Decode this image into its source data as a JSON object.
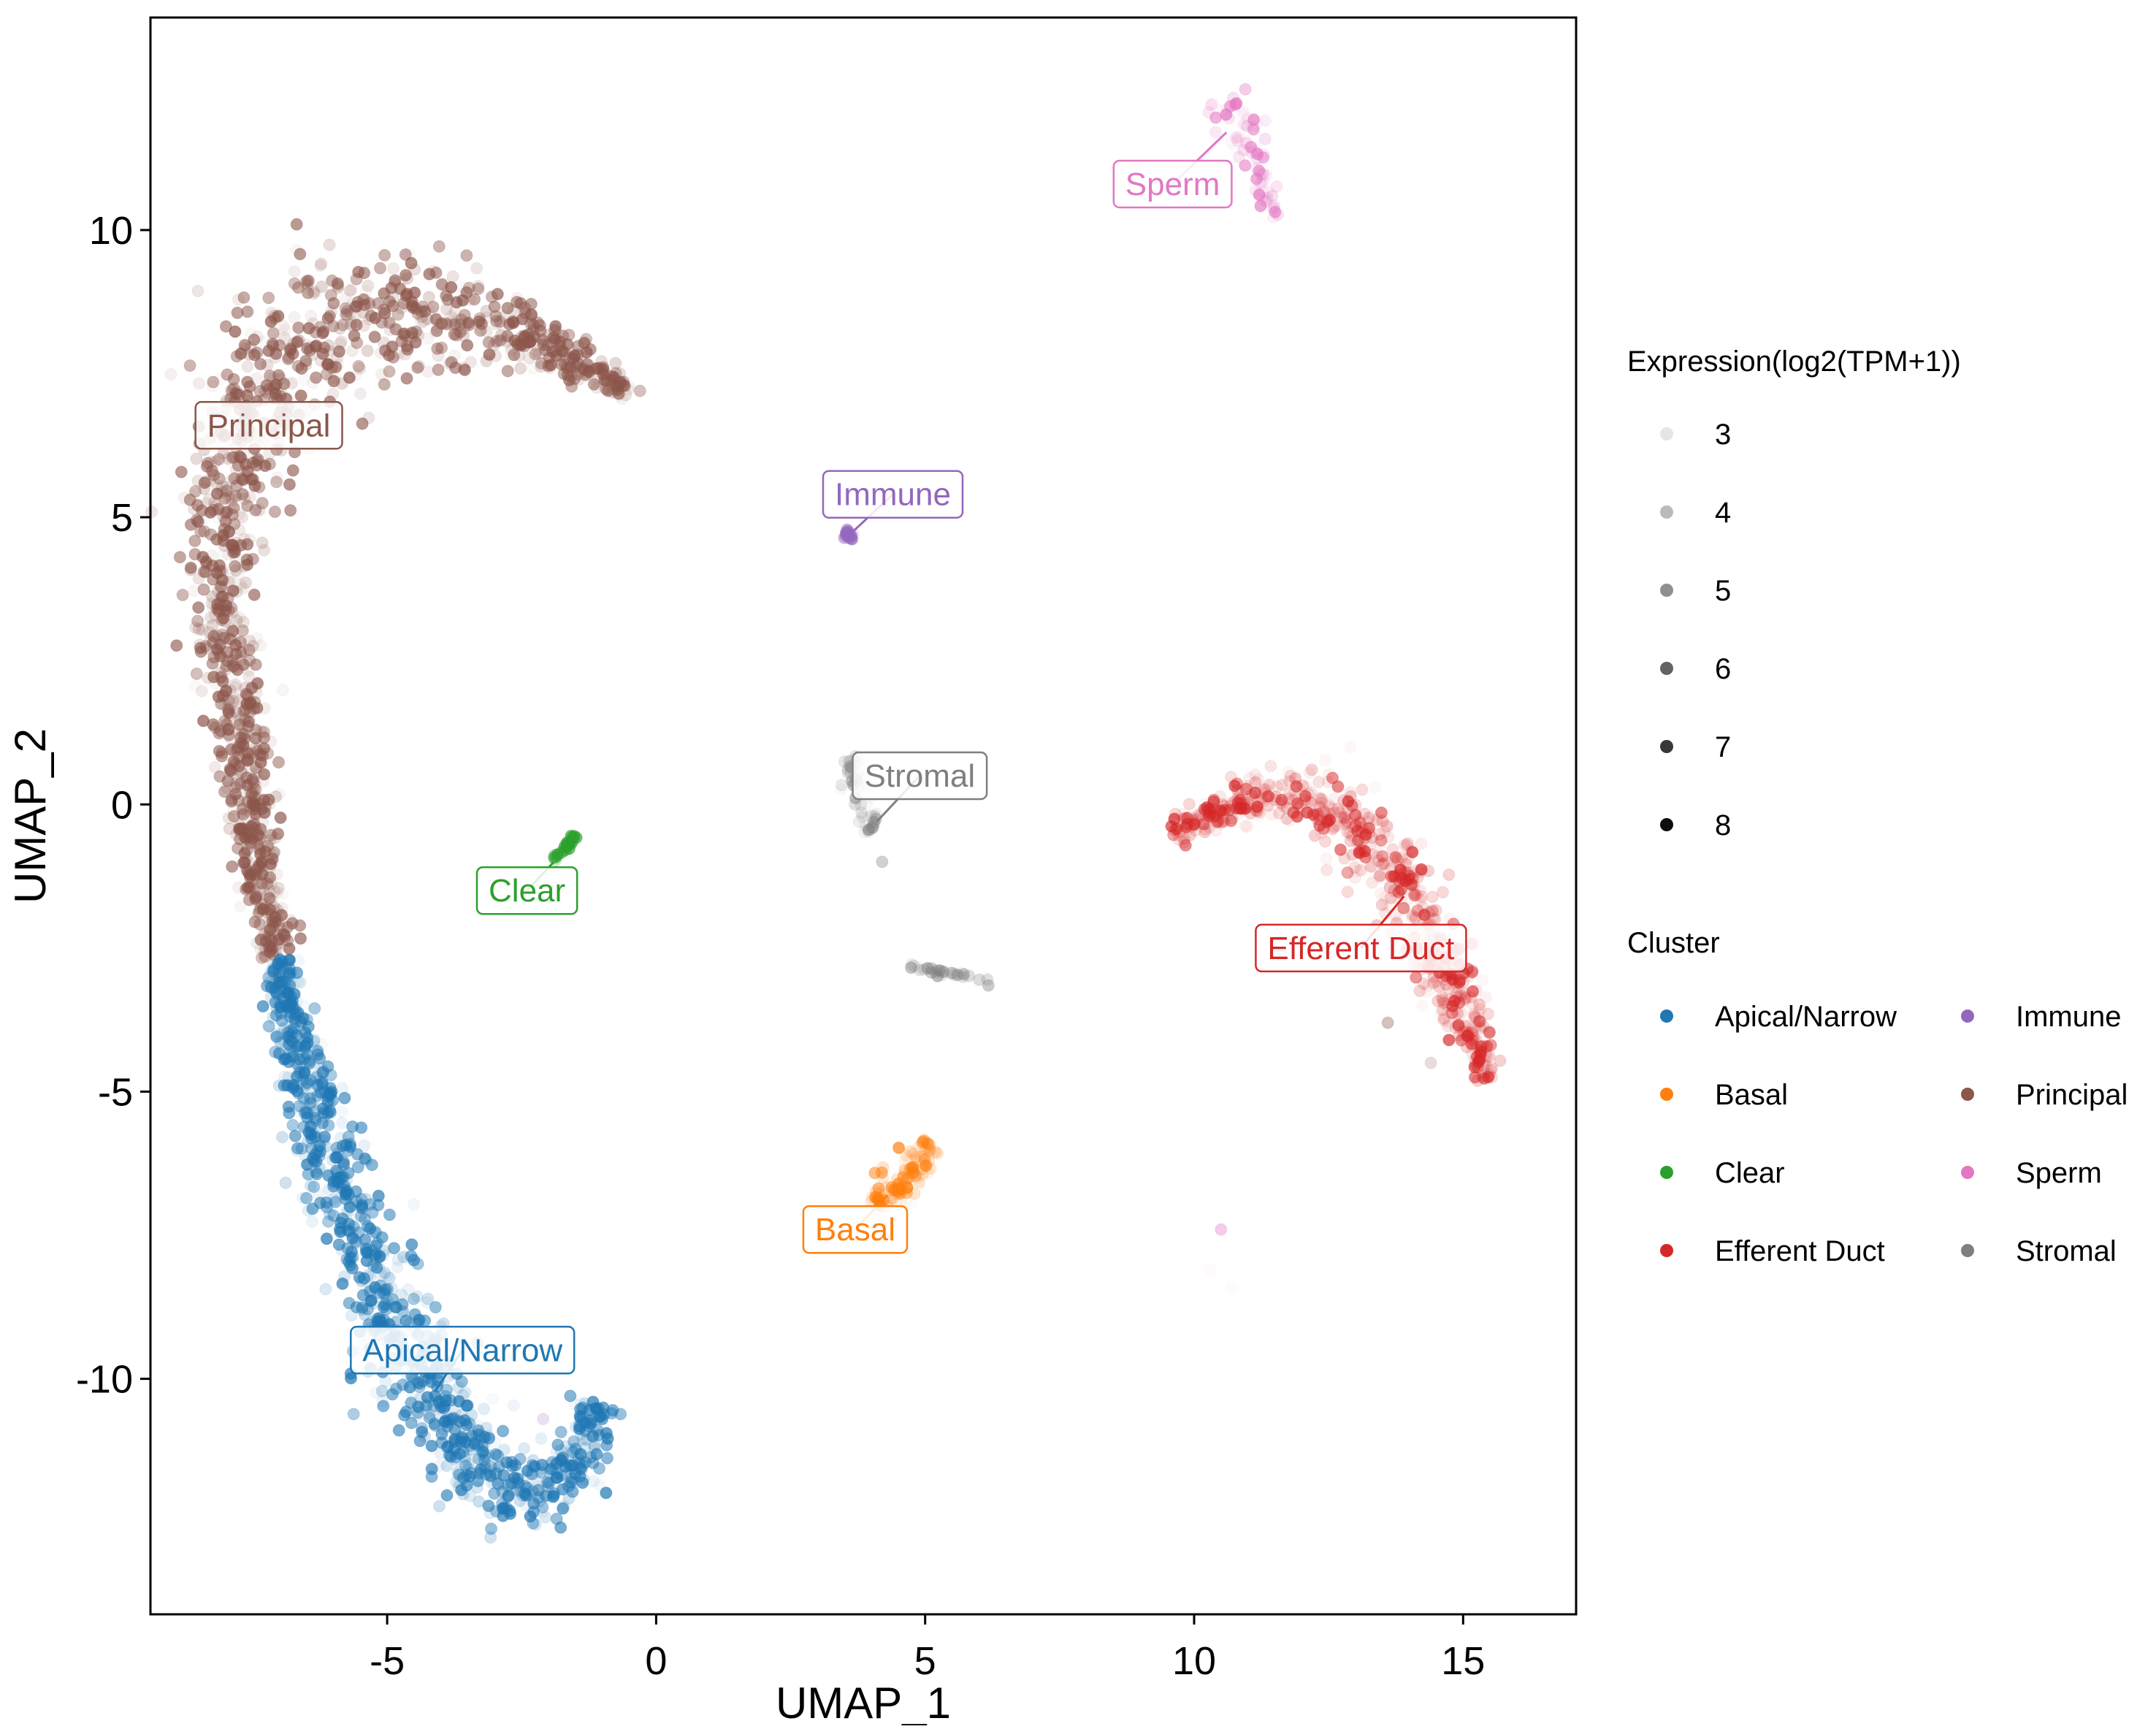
{
  "colors": {
    "Apical/Narrow": "#1f77b4",
    "Basal": "#ff7f0e",
    "Clear": "#2ca02c",
    "Efferent Duct": "#d62728",
    "Immune": "#9467bd",
    "Principal": "#8c564b",
    "Sperm": "#e377c2",
    "Stromal": "#7f7f7f"
  },
  "chart_data": {
    "type": "scatter",
    "title": "",
    "xlabel": "UMAP_1",
    "ylabel": "UMAP_2",
    "xlim": [
      -9.4,
      17.1
    ],
    "ylim": [
      -14.1,
      13.7
    ],
    "xticks": [
      -5,
      0,
      5,
      10,
      15
    ],
    "yticks": [
      10,
      5,
      0,
      -5,
      -10
    ],
    "grid": false,
    "legend_position": "right",
    "legend_expression": {
      "title": "Expression(log2(TPM+1))",
      "levels": [
        3,
        4,
        5,
        6,
        7,
        8
      ]
    },
    "legend_cluster": {
      "title": "Cluster",
      "entries": [
        "Apical/Narrow",
        "Basal",
        "Clear",
        "Efferent Duct",
        "Immune",
        "Principal",
        "Sperm",
        "Stromal"
      ]
    },
    "cluster_labels": [
      {
        "text": "Principal",
        "cluster": "Principal",
        "x": -7.2,
        "y": 6.6,
        "px": -7.2,
        "py": 6.6
      },
      {
        "text": "Immune",
        "cluster": "Immune",
        "x": 4.4,
        "y": 5.4,
        "px": 3.6,
        "py": 4.7
      },
      {
        "text": "Sperm",
        "cluster": "Sperm",
        "x": 9.6,
        "y": 10.8,
        "px": 10.6,
        "py": 11.7
      },
      {
        "text": "Stromal",
        "cluster": "Stromal",
        "x": 4.9,
        "y": 0.5,
        "px": 4.1,
        "py": -0.3
      },
      {
        "text": "Clear",
        "cluster": "Clear",
        "x": -2.4,
        "y": -1.5,
        "px": -1.9,
        "py": -1.0
      },
      {
        "text": "Efferent Duct",
        "cluster": "Efferent Duct",
        "x": 13.1,
        "y": -2.5,
        "px": 13.9,
        "py": -1.6
      },
      {
        "text": "Basal",
        "cluster": "Basal",
        "x": 3.7,
        "y": -7.4,
        "px": 4.3,
        "py": -6.8
      },
      {
        "text": "Apical/Narrow",
        "cluster": "Apical/Narrow",
        "x": -3.6,
        "y": -9.5,
        "px": -4.1,
        "py": -10.2
      }
    ],
    "clusters": [
      {
        "name": "Principal",
        "n": 1300,
        "expr": [
          3,
          6
        ],
        "hi_frac": 0.55,
        "path": [
          [
            -7.0,
            -2.6
          ],
          [
            -7.4,
            -1.2
          ],
          [
            -7.6,
            0.0
          ],
          [
            -7.8,
            1.8
          ],
          [
            -8.1,
            3.2
          ],
          [
            -8.1,
            4.5
          ],
          [
            -7.9,
            6.0
          ],
          [
            -7.4,
            7.3
          ],
          [
            -6.5,
            8.2
          ],
          [
            -5.2,
            8.6
          ],
          [
            -3.9,
            8.5
          ],
          [
            -2.8,
            8.3
          ],
          [
            -1.6,
            7.8
          ],
          [
            -0.5,
            7.2
          ]
        ],
        "width": [
          0.3,
          0.38,
          0.45,
          0.55,
          0.55,
          0.6,
          0.8,
          1.05,
          1.2,
          1.1,
          0.9,
          0.6,
          0.35,
          0.15
        ]
      },
      {
        "name": "Apical/Narrow",
        "n": 1000,
        "expr": [
          3,
          6
        ],
        "hi_frac": 0.55,
        "path": [
          [
            -7.0,
            -2.7
          ],
          [
            -6.7,
            -4.2
          ],
          [
            -6.2,
            -5.8
          ],
          [
            -5.6,
            -7.4
          ],
          [
            -5.0,
            -8.8
          ],
          [
            -4.3,
            -10.1
          ],
          [
            -3.5,
            -11.3
          ],
          [
            -2.5,
            -12.1
          ],
          [
            -1.6,
            -11.8
          ],
          [
            -1.1,
            -10.4
          ]
        ],
        "width": [
          0.28,
          0.4,
          0.5,
          0.6,
          0.7,
          0.75,
          0.75,
          0.6,
          0.5,
          0.4
        ]
      },
      {
        "name": "Efferent Duct",
        "n": 650,
        "expr": [
          3,
          6
        ],
        "hi_frac": 0.18,
        "path": [
          [
            9.6,
            -0.5
          ],
          [
            10.5,
            -0.1
          ],
          [
            11.6,
            0.2
          ],
          [
            12.6,
            -0.1
          ],
          [
            13.5,
            -0.8
          ],
          [
            14.2,
            -1.9
          ],
          [
            14.7,
            -3.1
          ],
          [
            15.2,
            -4.0
          ],
          [
            15.4,
            -4.8
          ]
        ],
        "width": [
          0.25,
          0.3,
          0.4,
          0.55,
          0.6,
          0.6,
          0.5,
          0.35,
          0.2
        ]
      },
      {
        "name": "Sperm",
        "n": 80,
        "expr": [
          3,
          6
        ],
        "hi_frac": 0.2,
        "path": [
          [
            10.3,
            12.2
          ],
          [
            10.9,
            12.0
          ],
          [
            11.1,
            11.3
          ],
          [
            11.3,
            10.5
          ],
          [
            11.5,
            10.2
          ]
        ],
        "width": [
          0.25,
          0.3,
          0.25,
          0.15,
          0.1
        ]
      },
      {
        "name": "Stromal",
        "n": 50,
        "expr": [
          3,
          5
        ],
        "hi_frac": 0.25,
        "path": [
          [
            3.6,
            0.8
          ],
          [
            3.8,
            0.2
          ],
          [
            4.0,
            -0.5
          ]
        ],
        "width": [
          0.15,
          0.2,
          0.15
        ]
      },
      {
        "name": "Stromal",
        "n": 35,
        "expr": [
          3,
          5
        ],
        "hi_frac": 0.3,
        "path": [
          [
            4.7,
            -2.8
          ],
          [
            5.3,
            -2.95
          ],
          [
            5.9,
            -3.0
          ],
          [
            6.2,
            -3.1
          ]
        ],
        "width": [
          0.06,
          0.06,
          0.06,
          0.06
        ]
      },
      {
        "name": "Immune",
        "n": 20,
        "expr": [
          3,
          6
        ],
        "hi_frac": 0.4,
        "path": [
          [
            3.5,
            4.75
          ],
          [
            3.65,
            4.6
          ]
        ],
        "width": [
          0.08,
          0.06
        ]
      },
      {
        "name": "Clear",
        "n": 25,
        "expr": [
          4,
          6
        ],
        "hi_frac": 0.6,
        "path": [
          [
            -1.9,
            -0.95
          ],
          [
            -1.7,
            -0.75
          ],
          [
            -1.5,
            -0.55
          ]
        ],
        "width": [
          0.05,
          0.05,
          0.04
        ]
      },
      {
        "name": "Basal",
        "n": 110,
        "expr": [
          3,
          6
        ],
        "hi_frac": 0.25,
        "path": [
          [
            4.1,
            -7.0
          ],
          [
            4.5,
            -6.6
          ],
          [
            4.9,
            -6.2
          ],
          [
            5.1,
            -5.9
          ]
        ],
        "width": [
          0.25,
          0.35,
          0.3,
          0.15
        ]
      }
    ],
    "outliers": [
      {
        "cluster": "Sperm",
        "x": 10.5,
        "y": -7.4,
        "expr": 5
      },
      {
        "cluster": "Sperm",
        "x": 10.3,
        "y": -8.1,
        "expr": 3
      },
      {
        "cluster": "Sperm",
        "x": 10.7,
        "y": -8.4,
        "expr": 3
      },
      {
        "cluster": "Principal",
        "x": 13.6,
        "y": -3.8,
        "expr": 5
      },
      {
        "cluster": "Principal",
        "x": 14.4,
        "y": -4.5,
        "expr": 4
      },
      {
        "cluster": "Efferent Duct",
        "x": 12.9,
        "y": 1.0,
        "expr": 3
      },
      {
        "cluster": "Stromal",
        "x": 4.2,
        "y": -1.0,
        "expr": 5
      },
      {
        "cluster": "Immune",
        "x": -2.1,
        "y": -10.7,
        "expr": 4
      },
      {
        "cluster": "Principal",
        "x": -1.3,
        "y": 8.1,
        "expr": 5
      },
      {
        "cluster": "Principal",
        "x": -0.3,
        "y": 7.2,
        "expr": 5
      }
    ]
  }
}
